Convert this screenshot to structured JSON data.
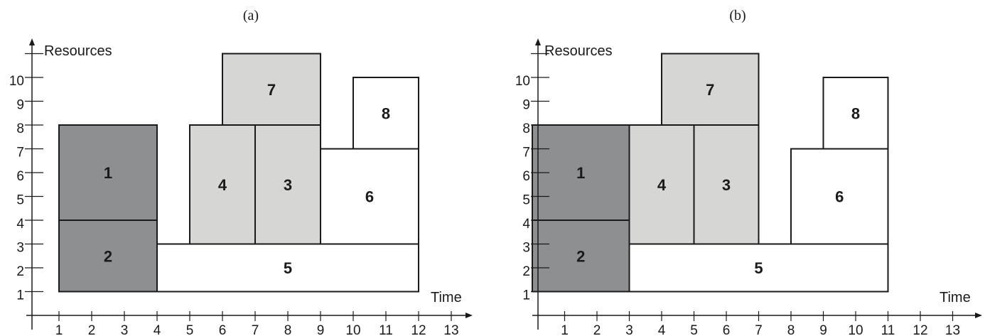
{
  "panels": [
    {
      "caption": "(a)",
      "y_axis_label": "Resources",
      "x_axis_label": "Time",
      "x_ticks": [
        "1",
        "2",
        "3",
        "4",
        "5",
        "6",
        "7",
        "8",
        "9",
        "10",
        "11",
        "12",
        "13"
      ],
      "y_ticks": [
        "1",
        "2",
        "3",
        "4",
        "5",
        "6",
        "7",
        "8",
        "9",
        "10"
      ],
      "tasks": [
        {
          "label": "1",
          "start": 1,
          "end": 4,
          "low": 4,
          "high": 8,
          "shade": "dark"
        },
        {
          "label": "2",
          "start": 1,
          "end": 4,
          "low": 1,
          "high": 4,
          "shade": "dark"
        },
        {
          "label": "4",
          "start": 5,
          "end": 7,
          "low": 3,
          "high": 8,
          "shade": "light"
        },
        {
          "label": "3",
          "start": 7,
          "end": 9,
          "low": 3,
          "high": 8,
          "shade": "light"
        },
        {
          "label": "7",
          "start": 6,
          "end": 9,
          "low": 8,
          "high": 11,
          "shade": "light"
        },
        {
          "label": "5",
          "start": 4,
          "end": 12,
          "low": 1,
          "high": 3,
          "shade": "white"
        },
        {
          "label": "6",
          "start": 9,
          "end": 12,
          "low": 3,
          "high": 7,
          "shade": "white"
        },
        {
          "label": "8",
          "start": 10,
          "end": 12,
          "low": 7,
          "high": 10,
          "shade": "white"
        }
      ]
    },
    {
      "caption": "(b)",
      "y_axis_label": "Resources",
      "x_axis_label": "Time",
      "x_ticks": [
        "1",
        "2",
        "3",
        "4",
        "5",
        "6",
        "7",
        "8",
        "9",
        "10",
        "11",
        "12",
        "13"
      ],
      "y_ticks": [
        "1",
        "2",
        "3",
        "4",
        "5",
        "6",
        "7",
        "8",
        "9",
        "10"
      ],
      "tasks": [
        {
          "label": "1",
          "start": 0,
          "end": 3,
          "low": 4,
          "high": 8,
          "shade": "dark"
        },
        {
          "label": "2",
          "start": 0,
          "end": 3,
          "low": 1,
          "high": 4,
          "shade": "dark"
        },
        {
          "label": "4",
          "start": 3,
          "end": 5,
          "low": 3,
          "high": 8,
          "shade": "light"
        },
        {
          "label": "3",
          "start": 5,
          "end": 7,
          "low": 3,
          "high": 8,
          "shade": "light"
        },
        {
          "label": "7",
          "start": 4,
          "end": 7,
          "low": 8,
          "high": 11,
          "shade": "light"
        },
        {
          "label": "5",
          "start": 3,
          "end": 11,
          "low": 1,
          "high": 3,
          "shade": "white"
        },
        {
          "label": "6",
          "start": 8,
          "end": 11,
          "low": 3,
          "high": 7,
          "shade": "white"
        },
        {
          "label": "8",
          "start": 9,
          "end": 11,
          "low": 7,
          "high": 10,
          "shade": "white"
        }
      ]
    }
  ],
  "colors": {
    "dark": "#8e8f91",
    "light": "#d6d7d5",
    "white": "#ffffff",
    "stroke": "#1a1a1a"
  }
}
